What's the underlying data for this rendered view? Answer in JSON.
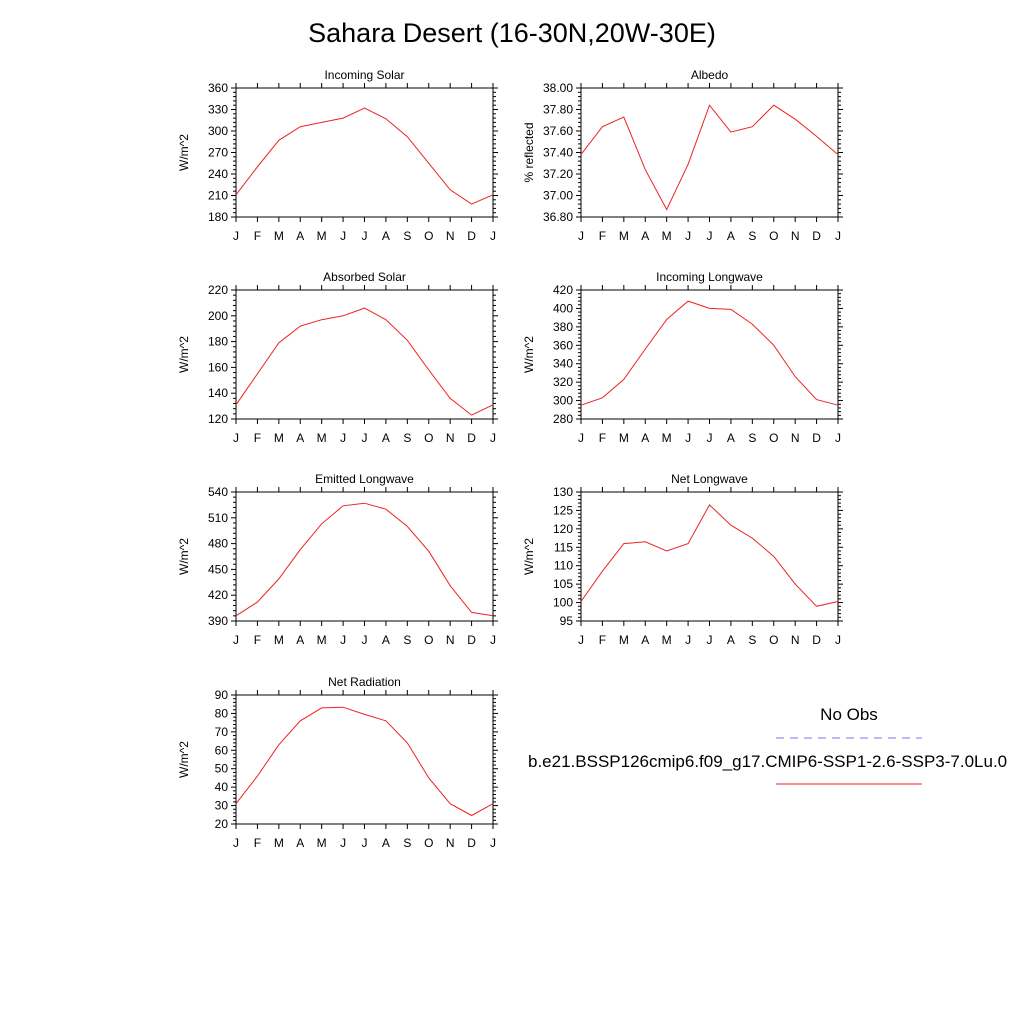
{
  "title": "Sahara Desert (16-30N,20W-30E)",
  "months": [
    "J",
    "F",
    "M",
    "A",
    "M",
    "J",
    "J",
    "A",
    "S",
    "O",
    "N",
    "D",
    "J"
  ],
  "legend": {
    "obs_label": "No Obs",
    "case_label": "b.e21.BSSP126cmip6.f09_g17.CMIP6-SSP1-2.6-SSP3-7.0Lu.0",
    "obs_color": "#7777ee",
    "case_color": "#ee2222"
  },
  "chart_data": [
    {
      "type": "line",
      "title": "Incoming Solar",
      "ylabel": "W/m^2",
      "ylim": [
        180,
        360
      ],
      "yticks": [
        "180",
        "210",
        "240",
        "270",
        "300",
        "330",
        "360"
      ],
      "series": [
        {
          "values": [
            211,
            250,
            287,
            306,
            312,
            318,
            332,
            317,
            292,
            255,
            218,
            198,
            211
          ]
        }
      ]
    },
    {
      "type": "line",
      "title": "Albedo",
      "ylabel": "% reflected",
      "ylim": [
        36.8,
        38.0
      ],
      "yticks": [
        "36.80",
        "37.00",
        "37.20",
        "37.40",
        "37.60",
        "37.80",
        "38.00"
      ],
      "series": [
        {
          "values": [
            37.38,
            37.64,
            37.73,
            37.24,
            36.87,
            37.29,
            37.84,
            37.59,
            37.64,
            37.84,
            37.71,
            37.55,
            37.38
          ]
        }
      ]
    },
    {
      "type": "line",
      "title": "Absorbed Solar",
      "ylabel": "W/m^2",
      "ylim": [
        120,
        220
      ],
      "yticks": [
        "120",
        "140",
        "160",
        "180",
        "200",
        "220"
      ],
      "series": [
        {
          "values": [
            131,
            155,
            179,
            192,
            197,
            200,
            206,
            197,
            181,
            158,
            136,
            123,
            131
          ]
        }
      ]
    },
    {
      "type": "line",
      "title": "Incoming Longwave",
      "ylabel": "W/m^2",
      "ylim": [
        280,
        420
      ],
      "yticks": [
        "280",
        "300",
        "320",
        "340",
        "360",
        "380",
        "400",
        "420"
      ],
      "series": [
        {
          "values": [
            295,
            303,
            323,
            356,
            388,
            408,
            400,
            399,
            383,
            360,
            326,
            301,
            295
          ]
        }
      ]
    },
    {
      "type": "line",
      "title": "Emitted Longwave",
      "ylabel": "W/m^2",
      "ylim": [
        390,
        540
      ],
      "yticks": [
        "390",
        "420",
        "450",
        "480",
        "510",
        "540"
      ],
      "series": [
        {
          "values": [
            396,
            412,
            439,
            473,
            503,
            524,
            527,
            520,
            500,
            471,
            431,
            400,
            396
          ]
        }
      ]
    },
    {
      "type": "line",
      "title": "Net Longwave",
      "ylabel": "W/m^2",
      "ylim": [
        95,
        130
      ],
      "yticks": [
        "95",
        "100",
        "105",
        "110",
        "115",
        "120",
        "125",
        "130"
      ],
      "series": [
        {
          "values": [
            100.3,
            108.5,
            116.0,
            116.5,
            114.0,
            116.0,
            126.5,
            121.0,
            117.5,
            112.5,
            105.0,
            99.0,
            100.3
          ]
        }
      ]
    },
    {
      "type": "line",
      "title": "Net Radiation",
      "ylabel": "W/m^2",
      "ylim": [
        20,
        90
      ],
      "yticks": [
        "20",
        "30",
        "40",
        "50",
        "60",
        "70",
        "80",
        "90"
      ],
      "series": [
        {
          "values": [
            31,
            46,
            63,
            76,
            83,
            83.4,
            79.5,
            76,
            64,
            45,
            31,
            24.6,
            31
          ]
        }
      ]
    }
  ]
}
